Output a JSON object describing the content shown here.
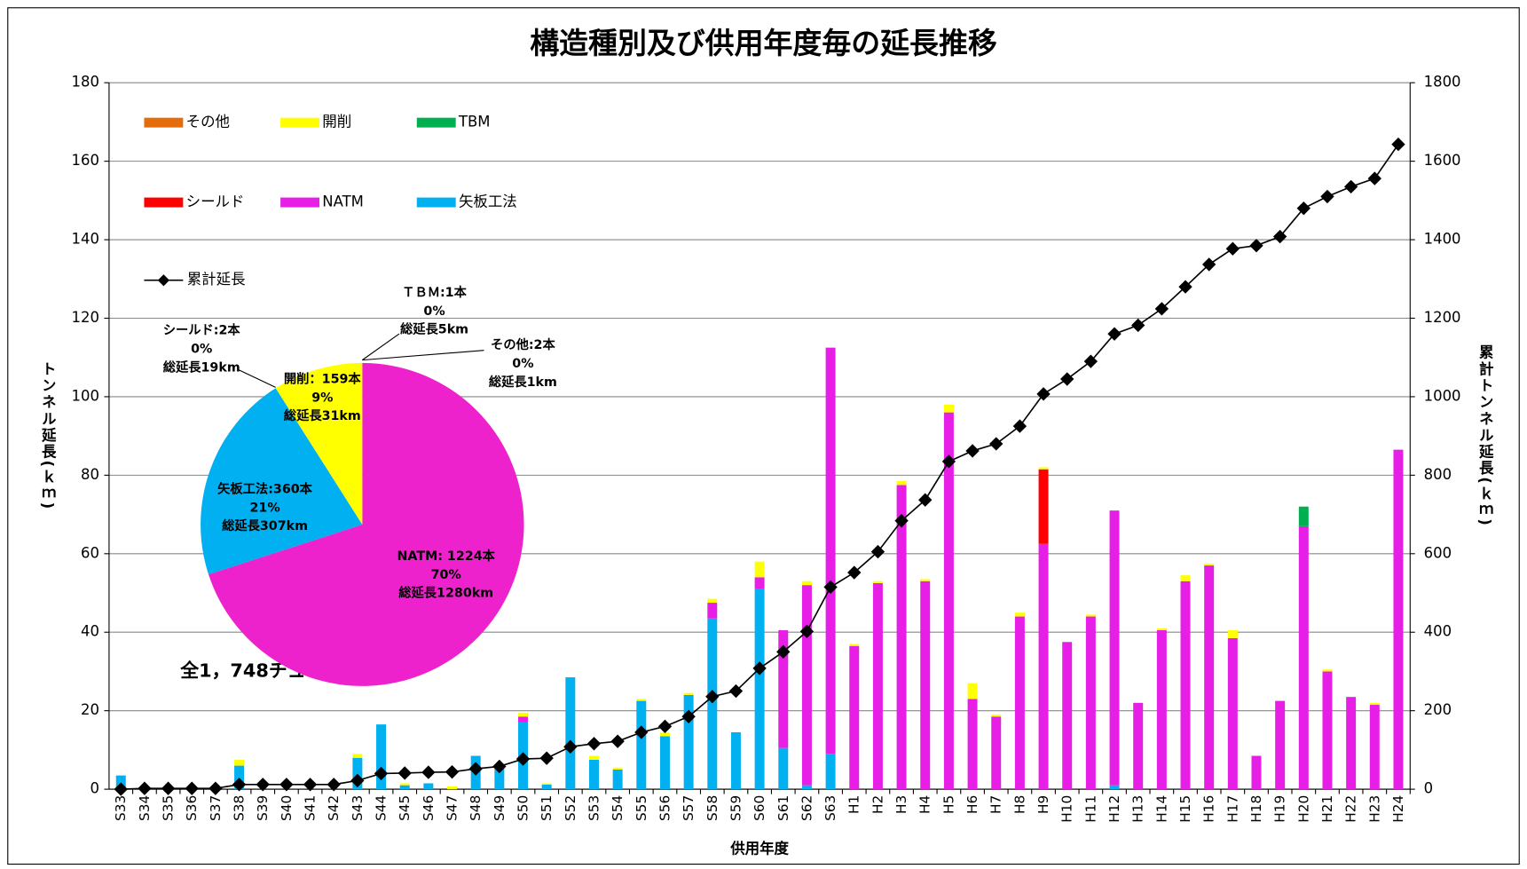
{
  "chart_data": [
    {
      "type": "bar",
      "stacked": true,
      "title": "構造種別及び供用年度毎の延長推移",
      "xlabel": "供用年度",
      "ylabel": "トンネル延長(ｋｍ)",
      "y2label": "累計トンネル延長(ｋｍ)",
      "annotation": "全1，748チューブ",
      "categories": [
        "S33",
        "S34",
        "S35",
        "S36",
        "S37",
        "S38",
        "S39",
        "S40",
        "S41",
        "S42",
        "S43",
        "S44",
        "S45",
        "S46",
        "S47",
        "S48",
        "S49",
        "S50",
        "S51",
        "S52",
        "S53",
        "S54",
        "S55",
        "S56",
        "S57",
        "S58",
        "S59",
        "S60",
        "S61",
        "S62",
        "S63",
        "H1",
        "H2",
        "H3",
        "H4",
        "H5",
        "H6",
        "H7",
        "H8",
        "H9",
        "H10",
        "H11",
        "H12",
        "H13",
        "H14",
        "H15",
        "H16",
        "H17",
        "H18",
        "H19",
        "H20",
        "H21",
        "H22",
        "H23",
        "H24"
      ],
      "series": [
        {
          "name": "矢板工法",
          "color": "#00b0f0",
          "axis": "y",
          "values": [
            3.5,
            0,
            0,
            0,
            0,
            6,
            0,
            0,
            0,
            0,
            8,
            16.5,
            1,
            1.5,
            0,
            8.5,
            6,
            17,
            1.2,
            28.5,
            7.5,
            5,
            22.5,
            13.5,
            24,
            43.5,
            14.5,
            51,
            10.5,
            1,
            9,
            0,
            0,
            0,
            0,
            0,
            0,
            0,
            0,
            0,
            0,
            0,
            1,
            0,
            0,
            0,
            0,
            0,
            0,
            0,
            0,
            0,
            0,
            0,
            0
          ]
        },
        {
          "name": "NATM",
          "color": "#e61ee6",
          "axis": "y",
          "values": [
            0,
            0,
            0,
            0,
            0,
            0,
            0,
            0,
            0,
            0,
            0,
            0,
            0,
            0,
            0,
            0,
            0,
            1.5,
            0,
            0,
            0,
            0,
            0,
            0,
            0,
            4,
            0,
            3,
            30,
            51,
            103.5,
            36.5,
            52.5,
            77.5,
            53,
            96,
            23,
            18.5,
            44,
            62.5,
            37.5,
            44,
            70,
            22,
            40.5,
            53,
            57,
            38.5,
            8.5,
            22.5,
            67,
            30,
            23.5,
            21.5,
            86.5
          ]
        },
        {
          "name": "シールド",
          "color": "#ff0000",
          "axis": "y",
          "values": [
            0,
            0,
            0,
            0,
            0,
            0,
            0,
            0,
            0,
            0,
            0,
            0,
            0,
            0,
            0,
            0,
            0,
            0,
            0,
            0,
            0,
            0,
            0,
            0,
            0,
            0,
            0,
            0,
            0,
            0,
            0,
            0,
            0,
            0,
            0,
            0,
            0,
            0,
            0,
            19,
            0,
            0,
            0,
            0,
            0,
            0,
            0,
            0,
            0,
            0,
            0,
            0,
            0,
            0,
            0
          ]
        },
        {
          "name": "TBM",
          "color": "#00b050",
          "axis": "y",
          "values": [
            0,
            0,
            0,
            0,
            0,
            0,
            0,
            0,
            0,
            0,
            0,
            0,
            0,
            0,
            0,
            0,
            0,
            0,
            0,
            0,
            0,
            0,
            0,
            0,
            0,
            0,
            0,
            0,
            0,
            0,
            0,
            0,
            0,
            0,
            0,
            0,
            0,
            0,
            0,
            0,
            0,
            0,
            0,
            0,
            0,
            0,
            0,
            0,
            0,
            0,
            5,
            0,
            0,
            0,
            0
          ]
        },
        {
          "name": "開削",
          "color": "#ffff00",
          "axis": "y",
          "values": [
            0,
            0,
            0,
            0,
            0,
            1.5,
            0,
            0,
            0,
            0,
            1,
            0,
            0.5,
            0,
            0.7,
            0,
            0,
            1,
            0.3,
            0,
            1,
            0.5,
            0.5,
            1,
            0.5,
            1,
            0,
            4,
            0,
            1,
            0,
            0.5,
            0.5,
            1,
            0.5,
            2,
            4,
            0.5,
            1,
            0.5,
            0,
            0.5,
            0,
            0,
            0.5,
            1.5,
            0.5,
            2,
            0,
            0,
            0,
            0.5,
            0,
            0.5,
            0
          ]
        },
        {
          "name": "その他",
          "color": "#e46c0a",
          "axis": "y",
          "values": [
            0,
            0,
            0,
            0,
            0,
            0,
            0,
            0,
            0,
            0,
            0,
            0,
            0,
            0,
            0,
            0,
            0,
            0,
            0,
            0,
            0,
            0,
            0,
            0,
            0,
            0,
            0,
            0,
            0,
            0,
            0,
            0,
            0,
            0,
            0,
            0,
            0,
            0,
            0,
            0,
            0,
            0,
            0,
            0,
            0,
            0,
            0,
            0,
            0,
            0,
            0,
            0,
            0,
            0,
            0
          ]
        },
        {
          "name": "累計延長",
          "color": "#000000",
          "type": "line",
          "axis": "y2",
          "values": [
            0,
            2,
            2,
            2,
            2,
            12,
            12,
            12,
            12,
            12,
            22,
            40,
            41,
            43,
            44,
            52,
            58,
            77,
            79,
            108,
            116,
            122,
            145,
            160,
            185,
            236,
            250,
            308,
            350,
            402,
            515,
            552,
            605,
            684,
            737,
            835,
            862,
            880,
            925,
            1007,
            1045,
            1090,
            1160,
            1182,
            1224,
            1280,
            1337,
            1377,
            1385,
            1408,
            1480,
            1510,
            1535,
            1556,
            1643
          ]
        }
      ],
      "ylim": [
        0,
        180
      ],
      "yticks": [
        0,
        20,
        40,
        60,
        80,
        100,
        120,
        140,
        160,
        180
      ],
      "y2lim": [
        0,
        1800
      ],
      "y2ticks": [
        0,
        200,
        400,
        600,
        800,
        1000,
        1200,
        1400,
        1600,
        1800
      ],
      "grid": true,
      "legend": "upper left"
    },
    {
      "type": "pie",
      "labels": [
        "NATM: 1224本",
        "矢板工法:360本",
        "シールド:2本",
        "開削：159本",
        "ＴＢＭ:1本",
        "その他:2本"
      ],
      "values": [
        70,
        21,
        0,
        9,
        0,
        0
      ],
      "value_labels": [
        "70%",
        "21%",
        "0%",
        "9%",
        "0%",
        "0%"
      ],
      "length_labels": [
        "総延長1280km",
        "総延長307km",
        "総延長19km",
        "総延長31km",
        "総延長5km",
        "総延長1km"
      ],
      "colors": [
        "#ee22cc",
        "#00b0f0",
        "#ff0000",
        "#ffff00",
        "#00b050",
        "#e46c0a"
      ]
    }
  ]
}
